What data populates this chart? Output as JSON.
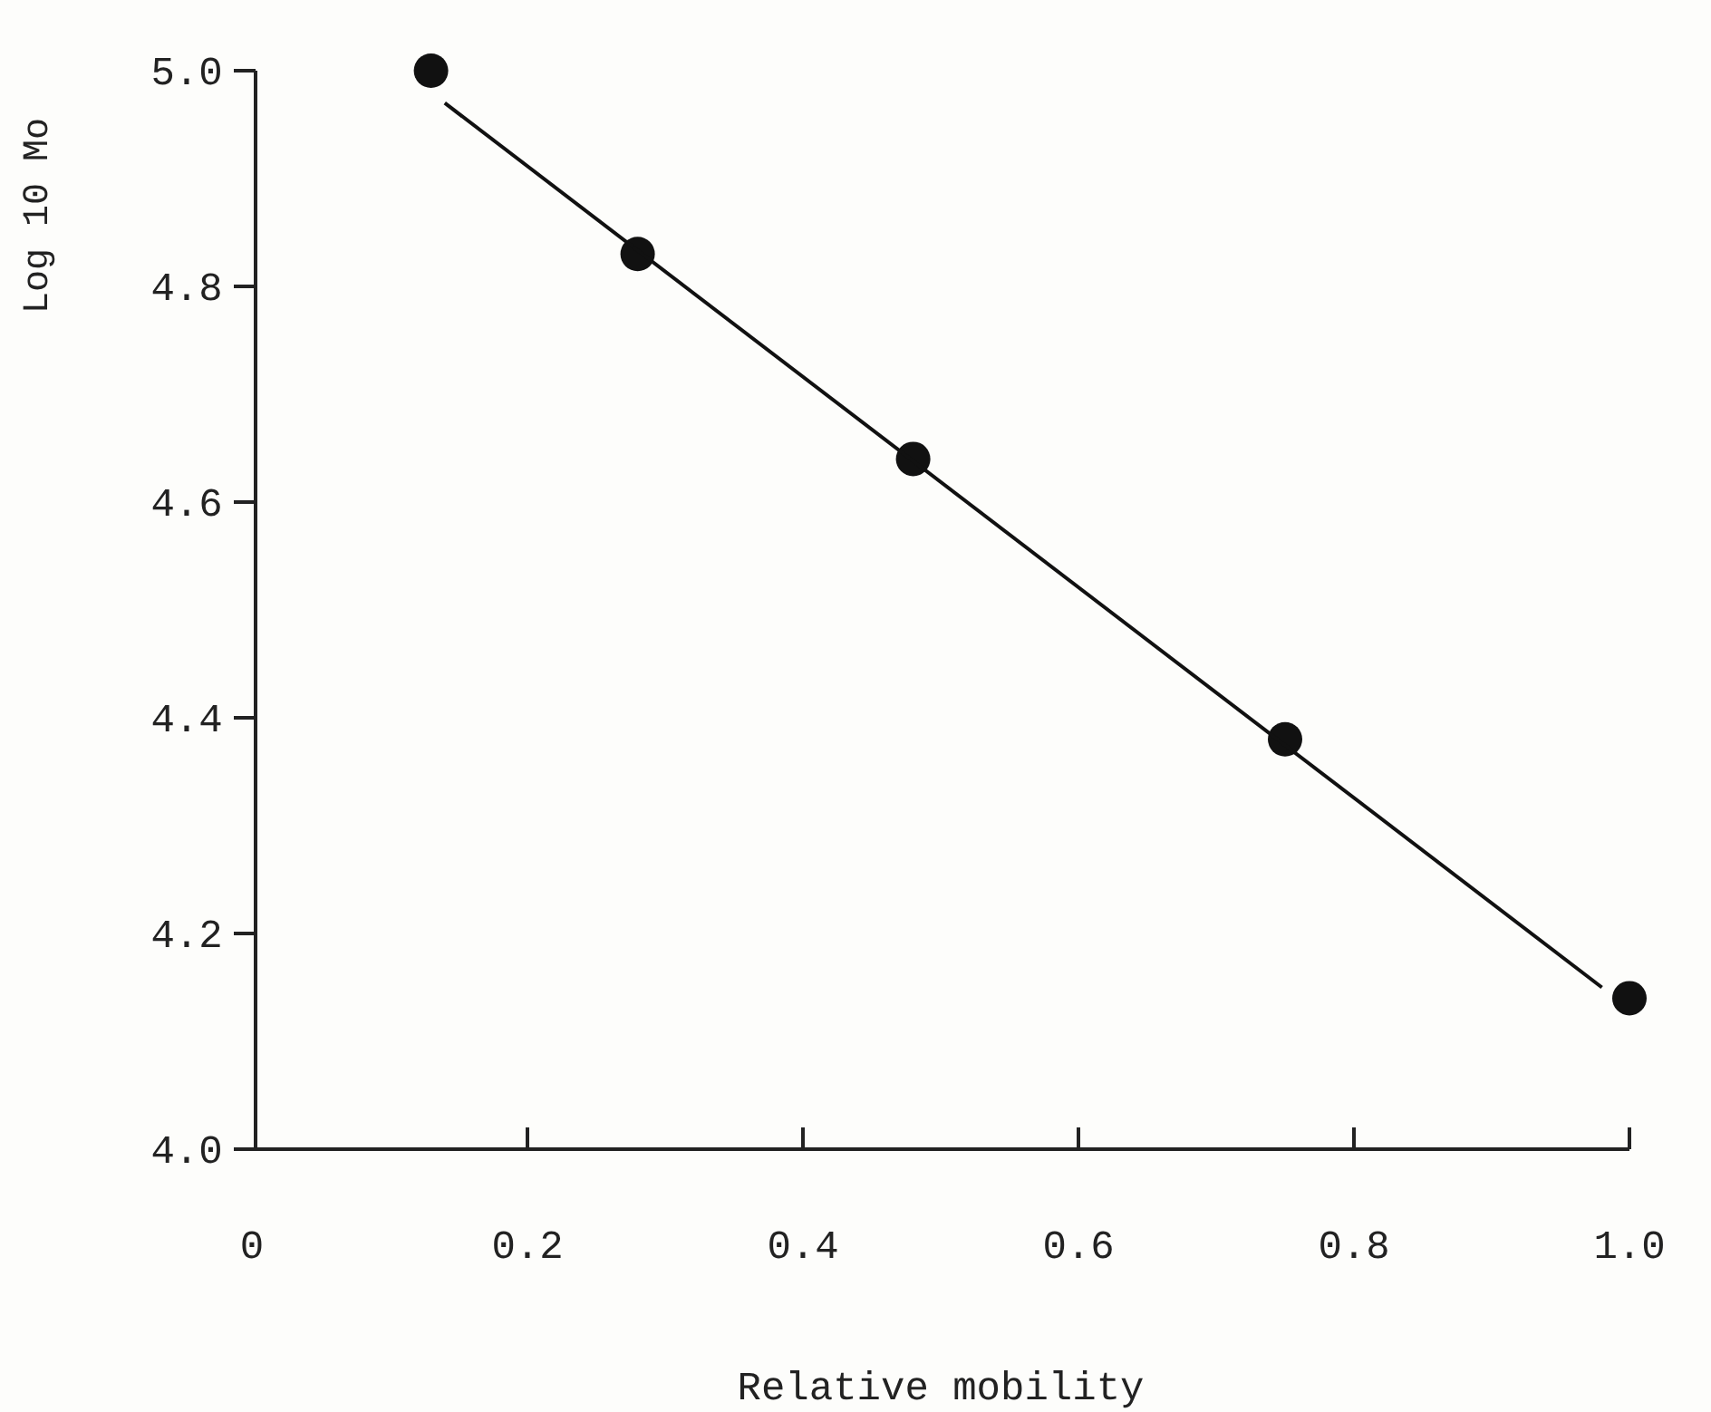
{
  "chart_data": {
    "type": "scatter",
    "xlabel": "Relative mobility",
    "ylabel": "Log 10 Mo",
    "x": [
      0.13,
      0.28,
      0.48,
      0.75,
      1.0
    ],
    "series": [
      {
        "color": "#111111",
        "values": [
          5.0,
          4.83,
          4.64,
          4.38,
          4.14
        ],
        "marker": "circle"
      },
      {
        "type": "line",
        "color": "#111111",
        "x": [
          0.14,
          0.98
        ],
        "values": [
          4.97,
          4.15
        ],
        "marker": "none"
      }
    ],
    "xlim": [
      0,
      1.0
    ],
    "ylim": [
      4.0,
      5.0
    ],
    "xticks": [
      {
        "value": 0,
        "label": "0"
      },
      {
        "value": 0.2,
        "label": "0.2"
      },
      {
        "value": 0.4,
        "label": "0.4"
      },
      {
        "value": 0.6,
        "label": "0.6"
      },
      {
        "value": 0.8,
        "label": "0.8"
      },
      {
        "value": 1.0,
        "label": "1.0"
      }
    ],
    "yticks": [
      {
        "value": 4.0,
        "label": "4.0"
      },
      {
        "value": 4.2,
        "label": "4.2"
      },
      {
        "value": 4.4,
        "label": "4.4"
      },
      {
        "value": 4.6,
        "label": "4.6"
      },
      {
        "value": 4.8,
        "label": "4.8"
      },
      {
        "value": 5.0,
        "label": "5.0"
      }
    ],
    "grid": false
  }
}
